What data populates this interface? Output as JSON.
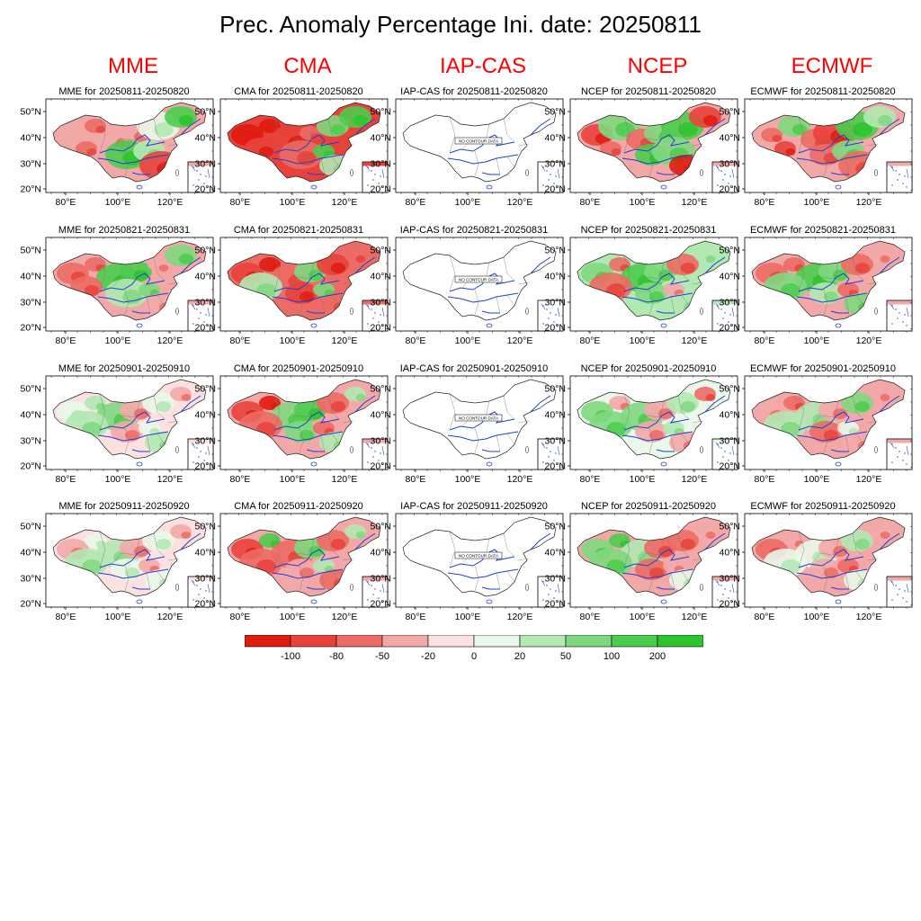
{
  "title": "Prec. Anomaly Percentage Ini. date: 20250811",
  "models": [
    "MME",
    "CMA",
    "IAP-CAS",
    "NCEP",
    "ECMWF"
  ],
  "periods": [
    "20250811-20250820",
    "20250821-20250831",
    "20250901-20250910",
    "20250911-20250920"
  ],
  "panel_titles": [
    [
      "MME for 20250811-20250820",
      "CMA for 20250811-20250820",
      "IAP-CAS for 20250811-20250820",
      "NCEP for 20250811-20250820",
      "ECMWF for 20250811-20250820"
    ],
    [
      "MME for 20250821-20250831",
      "CMA for 20250821-20250831",
      "IAP-CAS for 20250821-20250831",
      "NCEP for 20250821-20250831",
      "ECMWF for 20250821-20250831"
    ],
    [
      "MME for 20250901-20250910",
      "CMA for 20250901-20250910",
      "IAP-CAS for 20250901-20250910",
      "NCEP for 20250901-20250910",
      "ECMWF for 20250901-20250910"
    ],
    [
      "MME for 20250911-20250920",
      "CMA for 20250911-20250920",
      "IAP-CAS for 20250911-20250920",
      "NCEP for 20250911-20250920",
      "ECMWF for 20250911-20250920"
    ]
  ],
  "x_ticks": [
    "80°E",
    "100°E",
    "120°E"
  ],
  "y_ticks": [
    "50°N",
    "40°N",
    "30°N",
    "20°N"
  ],
  "no_data_label": "NO CONTOUR DATA",
  "no_data_model": "IAP-CAS",
  "legend": {
    "labels": [
      "-100",
      "-80",
      "-50",
      "-20",
      "0",
      "20",
      "50",
      "100",
      "200"
    ],
    "colors": [
      "#e01b10",
      "#e8423a",
      "#ec6b64",
      "#f3a8a8",
      "#fde0e0",
      "#e9f8e9",
      "#b2e8b2",
      "#7fd87f",
      "#4ccc4c",
      "#2dc42d"
    ]
  },
  "colors": {
    "title_text": "#000000",
    "model_header": "#ff0000",
    "river": "#1f3fd8",
    "border": "#222222"
  },
  "anomaly_patterns": [
    [
      {
        "base": 3,
        "blobs": [
          [
            1,
            2,
            0
          ],
          [
            2,
            3,
            1
          ],
          [
            3,
            3,
            1
          ],
          [
            4,
            5,
            2
          ],
          [
            5,
            8,
            1
          ],
          [
            6,
            2,
            0
          ],
          [
            7,
            8,
            2
          ],
          [
            8,
            6,
            1
          ],
          [
            9,
            1,
            2
          ]
        ]
      },
      {
        "base": 1,
        "blobs": [
          [
            0,
            0,
            1
          ],
          [
            1,
            0,
            0
          ],
          [
            2,
            1,
            2
          ],
          [
            3,
            2,
            0
          ],
          [
            4,
            7,
            1
          ],
          [
            5,
            8,
            1
          ],
          [
            6,
            1,
            1
          ],
          [
            7,
            2,
            2
          ],
          [
            8,
            8,
            0
          ],
          [
            9,
            6,
            1
          ]
        ]
      },
      {
        "base": -1,
        "blobs": []
      },
      {
        "base": 3,
        "blobs": [
          [
            0,
            1,
            1
          ],
          [
            1,
            7,
            2
          ],
          [
            2,
            2,
            1
          ],
          [
            3,
            7,
            1
          ],
          [
            4,
            8,
            2
          ],
          [
            5,
            1,
            1
          ],
          [
            6,
            2,
            0
          ],
          [
            7,
            8,
            1
          ],
          [
            8,
            7,
            2
          ],
          [
            9,
            0,
            1
          ]
        ]
      },
      {
        "base": 3,
        "blobs": [
          [
            0,
            2,
            0
          ],
          [
            1,
            7,
            1
          ],
          [
            2,
            2,
            1
          ],
          [
            3,
            1,
            2
          ],
          [
            4,
            8,
            2
          ],
          [
            5,
            6,
            1
          ],
          [
            6,
            1,
            0
          ],
          [
            7,
            2,
            1
          ],
          [
            8,
            7,
            1
          ],
          [
            9,
            2,
            2
          ]
        ]
      }
    ],
    [
      {
        "base": 3,
        "blobs": [
          [
            0,
            2,
            1
          ],
          [
            1,
            2,
            0
          ],
          [
            2,
            8,
            2
          ],
          [
            3,
            8,
            1
          ],
          [
            4,
            3,
            0
          ],
          [
            5,
            7,
            1
          ],
          [
            6,
            2,
            1
          ],
          [
            7,
            6,
            2
          ],
          [
            8,
            7,
            0
          ],
          [
            9,
            3,
            1
          ]
        ]
      },
      {
        "base": 2,
        "blobs": [
          [
            0,
            1,
            1
          ],
          [
            1,
            0,
            0
          ],
          [
            2,
            2,
            2
          ],
          [
            3,
            7,
            1
          ],
          [
            4,
            1,
            1
          ],
          [
            5,
            2,
            0
          ],
          [
            6,
            6,
            2
          ],
          [
            7,
            1,
            1
          ],
          [
            8,
            7,
            0
          ],
          [
            9,
            2,
            1
          ]
        ]
      },
      {
        "base": -1,
        "blobs": []
      },
      {
        "base": 6,
        "blobs": [
          [
            0,
            7,
            1
          ],
          [
            1,
            2,
            0
          ],
          [
            2,
            8,
            2
          ],
          [
            3,
            7,
            1
          ],
          [
            4,
            2,
            1
          ],
          [
            5,
            6,
            0
          ],
          [
            6,
            2,
            2
          ],
          [
            7,
            7,
            1
          ],
          [
            8,
            3,
            0
          ],
          [
            9,
            6,
            1
          ]
        ]
      },
      {
        "base": 3,
        "blobs": [
          [
            0,
            2,
            1
          ],
          [
            1,
            2,
            0
          ],
          [
            2,
            8,
            2
          ],
          [
            3,
            7,
            1
          ],
          [
            4,
            2,
            1
          ],
          [
            5,
            3,
            0
          ],
          [
            6,
            7,
            2
          ],
          [
            7,
            6,
            1
          ],
          [
            8,
            2,
            0
          ],
          [
            9,
            7,
            1
          ]
        ]
      }
    ],
    [
      {
        "base": 4,
        "blobs": [
          [
            0,
            5,
            1
          ],
          [
            1,
            6,
            0
          ],
          [
            2,
            7,
            2
          ],
          [
            3,
            3,
            1
          ],
          [
            4,
            5,
            1
          ],
          [
            5,
            3,
            0
          ],
          [
            6,
            6,
            2
          ],
          [
            7,
            3,
            1
          ],
          [
            8,
            5,
            0
          ],
          [
            9,
            6,
            1
          ]
        ]
      },
      {
        "base": 3,
        "blobs": [
          [
            0,
            1,
            1
          ],
          [
            1,
            0,
            0
          ],
          [
            2,
            7,
            2
          ],
          [
            3,
            8,
            1
          ],
          [
            4,
            2,
            1
          ],
          [
            5,
            6,
            0
          ],
          [
            6,
            2,
            2
          ],
          [
            7,
            7,
            1
          ],
          [
            8,
            2,
            0
          ],
          [
            9,
            6,
            1
          ]
        ]
      },
      {
        "base": -1,
        "blobs": []
      },
      {
        "base": 5,
        "blobs": [
          [
            0,
            7,
            1
          ],
          [
            1,
            3,
            0
          ],
          [
            2,
            7,
            2
          ],
          [
            3,
            3,
            1
          ],
          [
            4,
            6,
            1
          ],
          [
            5,
            2,
            0
          ],
          [
            6,
            7,
            2
          ],
          [
            7,
            3,
            1
          ],
          [
            8,
            6,
            0
          ],
          [
            9,
            3,
            1
          ]
        ]
      },
      {
        "base": 3,
        "blobs": [
          [
            0,
            3,
            1
          ],
          [
            1,
            2,
            0
          ],
          [
            2,
            6,
            2
          ],
          [
            3,
            3,
            1
          ],
          [
            4,
            7,
            1
          ],
          [
            5,
            3,
            0
          ],
          [
            6,
            6,
            2
          ],
          [
            7,
            2,
            1
          ],
          [
            8,
            5,
            0
          ],
          [
            9,
            3,
            1
          ]
        ]
      }
    ],
    [
      {
        "base": 4,
        "blobs": [
          [
            0,
            3,
            1
          ],
          [
            1,
            5,
            0
          ],
          [
            2,
            6,
            2
          ],
          [
            3,
            3,
            1
          ],
          [
            4,
            5,
            1
          ],
          [
            5,
            3,
            0
          ],
          [
            6,
            6,
            2
          ],
          [
            7,
            5,
            1
          ],
          [
            8,
            3,
            0
          ],
          [
            9,
            5,
            1
          ]
        ]
      },
      {
        "base": 3,
        "blobs": [
          [
            0,
            1,
            1
          ],
          [
            1,
            8,
            0
          ],
          [
            2,
            2,
            2
          ],
          [
            3,
            7,
            1
          ],
          [
            4,
            2,
            1
          ],
          [
            5,
            6,
            0
          ],
          [
            6,
            2,
            2
          ],
          [
            7,
            3,
            1
          ],
          [
            8,
            6,
            0
          ],
          [
            9,
            2,
            1
          ]
        ]
      },
      {
        "base": -1,
        "blobs": []
      },
      {
        "base": 3,
        "blobs": [
          [
            0,
            7,
            1
          ],
          [
            1,
            8,
            0
          ],
          [
            2,
            6,
            2
          ],
          [
            3,
            2,
            1
          ],
          [
            4,
            2,
            1
          ],
          [
            5,
            3,
            0
          ],
          [
            6,
            7,
            2
          ],
          [
            7,
            2,
            1
          ],
          [
            8,
            3,
            0
          ],
          [
            9,
            5,
            1
          ]
        ]
      },
      {
        "base": 3,
        "blobs": [
          [
            0,
            2,
            1
          ],
          [
            1,
            3,
            0
          ],
          [
            2,
            5,
            2
          ],
          [
            3,
            3,
            1
          ],
          [
            4,
            6,
            1
          ],
          [
            5,
            3,
            0
          ],
          [
            6,
            5,
            2
          ],
          [
            7,
            3,
            1
          ],
          [
            8,
            2,
            0
          ],
          [
            9,
            5,
            1
          ]
        ]
      }
    ]
  ]
}
